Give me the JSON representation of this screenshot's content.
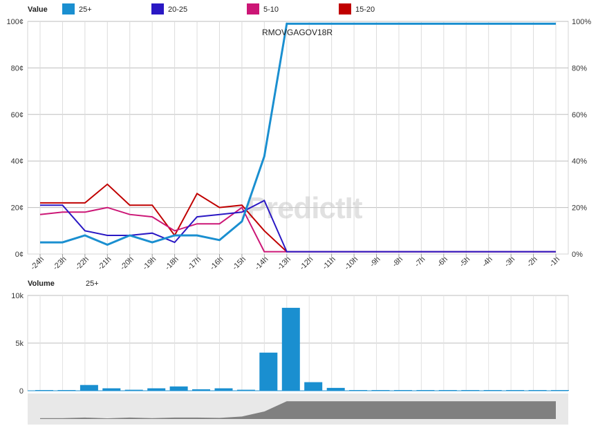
{
  "chart_data": [
    {
      "type": "line",
      "title": "RMOVGAGOV18R",
      "legend_title": "Value",
      "legend_position": "top-left",
      "watermark": "PredictIt",
      "x": [
        "-24h",
        "-23h",
        "-22h",
        "-21h",
        "-20h",
        "-19h",
        "-18h",
        "-17h",
        "-16h",
        "-15h",
        "-14h",
        "-13h",
        "-12h",
        "-11h",
        "-10h",
        "-9h",
        "-8h",
        "-7h",
        "-6h",
        "-5h",
        "-4h",
        "-3h",
        "-2h",
        "-1h"
      ],
      "ylim": [
        0,
        100
      ],
      "y_ticks": [
        "0¢",
        "20¢",
        "40¢",
        "60¢",
        "80¢",
        "100¢"
      ],
      "y2_ticks": [
        "0%",
        "20%",
        "40%",
        "60%",
        "80%",
        "100%"
      ],
      "grid": true,
      "series": [
        {
          "name": "25+",
          "color": "#1a8fd0",
          "values": [
            5,
            5,
            8,
            4,
            8,
            5,
            8,
            8,
            6,
            14,
            42,
            99,
            99,
            99,
            99,
            99,
            99,
            99,
            99,
            99,
            99,
            99,
            99,
            99
          ]
        },
        {
          "name": "20-25",
          "color": "#2a18c4",
          "values": [
            21,
            21,
            10,
            8,
            8,
            9,
            5,
            16,
            17,
            18,
            23,
            1,
            1,
            1,
            1,
            1,
            1,
            1,
            1,
            1,
            1,
            1,
            1,
            1
          ]
        },
        {
          "name": "5-10",
          "color": "#cc1676",
          "values": [
            17,
            18,
            18,
            20,
            17,
            16,
            10,
            13,
            13,
            20,
            1,
            1,
            1,
            1,
            1,
            1,
            1,
            1,
            1,
            1,
            1,
            1,
            1,
            1
          ]
        },
        {
          "name": "15-20",
          "color": "#c00000",
          "values": [
            22,
            22,
            22,
            30,
            21,
            21,
            8,
            26,
            20,
            21,
            10,
            1,
            1,
            1,
            1,
            1,
            1,
            1,
            1,
            1,
            1,
            1,
            1,
            1
          ]
        }
      ]
    },
    {
      "type": "bar",
      "legend_title": "Volume",
      "series_name": "25+",
      "color": "#1a8fd0",
      "x": [
        "-24h",
        "-23h",
        "-22h",
        "-21h",
        "-20h",
        "-19h",
        "-18h",
        "-17h",
        "-16h",
        "-15h",
        "-14h",
        "-13h",
        "-12h",
        "-11h",
        "-10h",
        "-9h",
        "-8h",
        "-7h",
        "-6h",
        "-5h",
        "-4h",
        "-3h",
        "-2h",
        "-1h"
      ],
      "values": [
        0,
        0,
        600,
        250,
        100,
        250,
        450,
        150,
        250,
        100,
        4000,
        8700,
        900,
        300,
        0,
        0,
        0,
        0,
        0,
        0,
        0,
        0,
        0,
        0
      ],
      "ylim": [
        0,
        10000
      ],
      "y_ticks": [
        "0",
        "5k",
        "10k"
      ],
      "grid": true
    }
  ]
}
